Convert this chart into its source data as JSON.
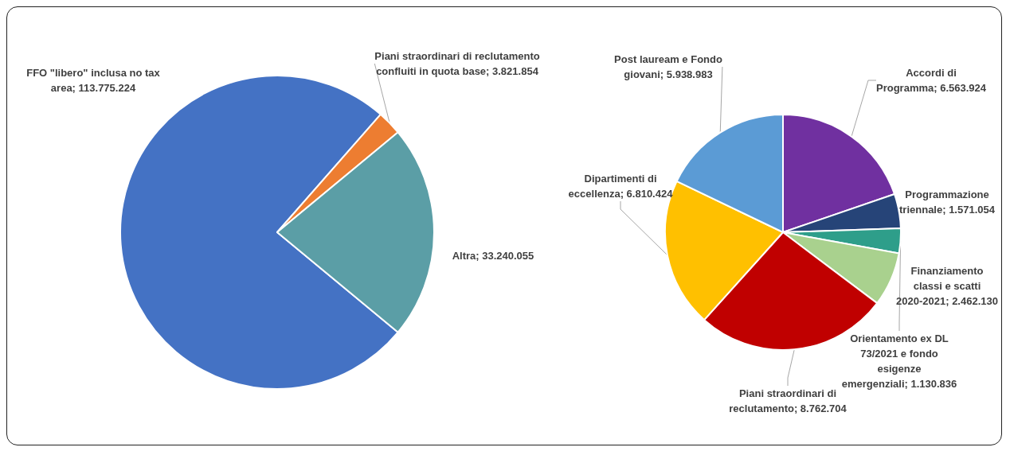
{
  "chart_data": [
    {
      "type": "pie",
      "categories": [
        "FFO \"libero\" inclusa no tax area",
        "Piani straordinari di reclutamento confluiti in quota base",
        "Altra"
      ],
      "values": [
        113775224,
        3821854,
        33240055
      ],
      "value_labels": [
        "113.775.224",
        "3.821.854",
        "33.240.055"
      ],
      "colors": [
        "#4472c4",
        "#ed7d31",
        "#5b9ea6"
      ]
    },
    {
      "type": "pie",
      "categories": [
        "Accordi di Programma",
        "Programmazione triennale",
        "Orientamento ex DL 73/2021 e fondo esigenze emergenziali",
        "Finanziamento classi e scatti 2020-2021",
        "Piani straordinari di reclutamento",
        "Dipartimenti di eccellenza",
        "Post lauream e Fondo giovani"
      ],
      "values": [
        6563924,
        1571054,
        1130836,
        2462130,
        8762704,
        6810424,
        5938983
      ],
      "value_labels": [
        "6.563.924",
        "1.571.054",
        "1.130.836",
        "2.462.130",
        "8.762.704",
        "6.810.424",
        "5.938.983"
      ],
      "colors": [
        "#7030a0",
        "#264478",
        "#2e9e8a",
        "#a9d18e",
        "#c00000",
        "#ffc000",
        "#5b9bd5"
      ]
    }
  ]
}
